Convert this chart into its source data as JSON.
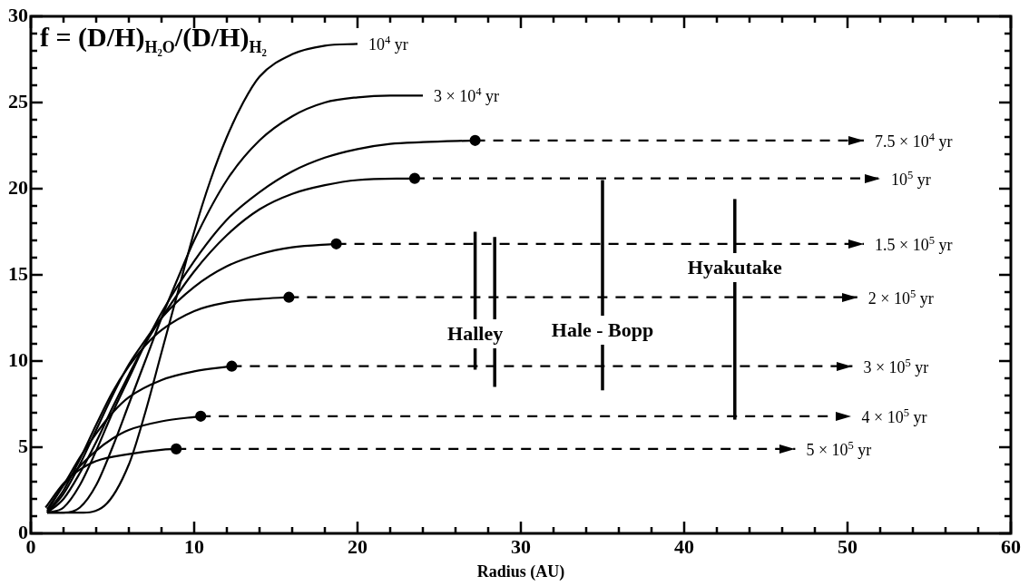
{
  "chart_data": {
    "type": "line",
    "title": "f = (D/H)$_{H₂O}$/(D/H)$_{H₂}$",
    "xlabel": "Radius (AU)",
    "xlim": [
      0,
      60
    ],
    "ylim": [
      0,
      30
    ],
    "xticks": [
      0,
      {
        "value": 2,
        "label": null
      },
      {
        "value": 4,
        "label": null
      },
      {
        "value": 6,
        "label": null
      },
      {
        "value": 8,
        "label": null
      },
      10,
      {
        "value": 12,
        "label": null
      },
      {
        "value": 14,
        "label": null
      },
      {
        "value": 16,
        "label": null
      },
      {
        "value": 18,
        "label": null
      },
      20,
      {
        "value": 22,
        "label": null
      },
      {
        "value": 24,
        "label": null
      },
      {
        "value": 26,
        "label": null
      },
      {
        "value": 28,
        "label": null
      },
      30,
      {
        "value": 32,
        "label": null
      },
      {
        "value": 34,
        "label": null
      },
      {
        "value": 36,
        "label": null
      },
      {
        "value": 38,
        "label": null
      },
      40,
      {
        "value": 42,
        "label": null
      },
      {
        "value": 44,
        "label": null
      },
      {
        "value": 46,
        "label": null
      },
      {
        "value": 48,
        "label": null
      },
      50,
      {
        "value": 52,
        "label": null
      },
      {
        "value": 54,
        "label": null
      },
      {
        "value": 56,
        "label": null
      },
      {
        "value": 58,
        "label": null
      },
      60
    ],
    "yticks": [
      0,
      {
        "value": 1,
        "label": null
      },
      {
        "value": 2,
        "label": null
      },
      {
        "value": 3,
        "label": null
      },
      {
        "value": 4,
        "label": null
      },
      5,
      {
        "value": 6,
        "label": null
      },
      {
        "value": 7,
        "label": null
      },
      {
        "value": 8,
        "label": null
      },
      {
        "value": 9,
        "label": null
      },
      10,
      {
        "value": 11,
        "label": null
      },
      {
        "value": 12,
        "label": null
      },
      {
        "value": 13,
        "label": null
      },
      {
        "value": 14,
        "label": null
      },
      15,
      {
        "value": 16,
        "label": null
      },
      {
        "value": 17,
        "label": null
      },
      {
        "value": 18,
        "label": null
      },
      {
        "value": 19,
        "label": null
      },
      20,
      {
        "value": 21,
        "label": null
      },
      {
        "value": 22,
        "label": null
      },
      {
        "value": 23,
        "label": null
      },
      {
        "value": 24,
        "label": null
      },
      25,
      {
        "value": 26,
        "label": null
      },
      {
        "value": 27,
        "label": null
      },
      {
        "value": 28,
        "label": null
      },
      {
        "value": 29,
        "label": null
      },
      30
    ],
    "grid": false,
    "legend": false,
    "marker": "none",
    "line_style": "solid",
    "series": [
      {
        "type": "line",
        "color": "#000000",
        "x": [
          1,
          3,
          4.5,
          6,
          7,
          8,
          9,
          10,
          11,
          12,
          13,
          14,
          16,
          18,
          20
        ],
        "values": [
          1.2,
          1.2,
          1.6,
          4,
          7,
          10.5,
          14,
          17.5,
          20.5,
          23,
          25,
          26.5,
          27.8,
          28.3,
          28.4
        ]
      },
      {
        "type": "line",
        "color": "#000000",
        "x": [
          1,
          2,
          3,
          4,
          5,
          6,
          7,
          8,
          9,
          10,
          12,
          14,
          16,
          18,
          20,
          22,
          24
        ],
        "values": [
          1.2,
          1.2,
          1.5,
          2.8,
          5,
          7.5,
          10,
          12.5,
          14.8,
          17,
          20.5,
          22.8,
          24.2,
          25,
          25.3,
          25.4,
          25.4
        ]
      },
      {
        "type": "line",
        "color": "#000000",
        "x": [
          1,
          2,
          3,
          4,
          5,
          6,
          7,
          8,
          10,
          12,
          14,
          16,
          18,
          20,
          22,
          24,
          27.2
        ],
        "values": [
          1.2,
          1.5,
          2.8,
          4.8,
          7,
          9,
          11,
          12.8,
          15.8,
          18.2,
          19.8,
          21,
          21.8,
          22.3,
          22.6,
          22.7,
          22.8
        ]
      },
      {
        "type": "line",
        "color": "#000000",
        "x": [
          1,
          2,
          3,
          4,
          5,
          6,
          7,
          8,
          10,
          12,
          14,
          16,
          18,
          20,
          23.5
        ],
        "values": [
          1.2,
          2,
          3.5,
          5.3,
          7.3,
          9.2,
          11,
          12.5,
          15.2,
          17.3,
          18.8,
          19.7,
          20.2,
          20.5,
          20.6
        ]
      },
      {
        "type": "line",
        "color": "#000000",
        "x": [
          1,
          2,
          3,
          4,
          5,
          6,
          7,
          8,
          10,
          12,
          14,
          16,
          18.7
        ],
        "values": [
          1.2,
          2.3,
          4,
          6,
          8,
          9.8,
          11.2,
          12.5,
          14.3,
          15.5,
          16.2,
          16.6,
          16.8
        ]
      },
      {
        "type": "line",
        "color": "#000000",
        "x": [
          1,
          2,
          3,
          4,
          5,
          6,
          7,
          8,
          10,
          12,
          14,
          15.8
        ],
        "values": [
          1.2,
          2.5,
          4.3,
          6.3,
          8.2,
          9.7,
          10.9,
          11.8,
          12.9,
          13.4,
          13.6,
          13.7
        ]
      },
      {
        "type": "line",
        "color": "#000000",
        "x": [
          1,
          2,
          3,
          4,
          5,
          6,
          8,
          10,
          12.3
        ],
        "values": [
          1.3,
          2.8,
          4.4,
          5.8,
          7,
          7.9,
          8.9,
          9.4,
          9.7
        ]
      },
      {
        "type": "line",
        "color": "#000000",
        "x": [
          1,
          2,
          3,
          4,
          5,
          6,
          8,
          10.4
        ],
        "values": [
          1.4,
          2.8,
          3.9,
          4.8,
          5.5,
          6,
          6.5,
          6.8
        ]
      },
      {
        "type": "line",
        "color": "#000000",
        "x": [
          0.9,
          2,
          3,
          4,
          6,
          8,
          8.9
        ],
        "values": [
          1.5,
          2.9,
          3.7,
          4.2,
          4.6,
          4.85,
          4.9
        ]
      },
      {
        "type": "line",
        "line_style": "dashed",
        "color": "#000000",
        "x": [
          27.2,
          51
        ],
        "values": [
          22.8,
          22.8
        ]
      },
      {
        "type": "line",
        "line_style": "dashed",
        "color": "#000000",
        "x": [
          23.5,
          52
        ],
        "values": [
          20.6,
          20.6
        ]
      },
      {
        "type": "line",
        "line_style": "dashed",
        "color": "#000000",
        "x": [
          18.7,
          51
        ],
        "values": [
          16.8,
          16.8
        ]
      },
      {
        "type": "line",
        "line_style": "dashed",
        "color": "#000000",
        "x": [
          15.8,
          50.6
        ],
        "values": [
          13.7,
          13.7
        ]
      },
      {
        "type": "line",
        "line_style": "dashed",
        "color": "#000000",
        "x": [
          12.3,
          50.3
        ],
        "values": [
          9.7,
          9.7
        ]
      },
      {
        "type": "line",
        "line_style": "dashed",
        "color": "#000000",
        "x": [
          10.4,
          50.2
        ],
        "values": [
          6.8,
          6.8
        ]
      },
      {
        "type": "line",
        "line_style": "dashed",
        "color": "#000000",
        "x": [
          8.9,
          46.8
        ],
        "values": [
          4.9,
          4.9
        ]
      },
      {
        "type": "scatter",
        "marker": "circle",
        "color": "#000000",
        "x": [
          27.2,
          23.5,
          18.7,
          15.8,
          12.3,
          10.4,
          8.9
        ],
        "values": [
          22.8,
          20.6,
          16.8,
          13.7,
          9.7,
          6.8,
          4.9
        ]
      },
      {
        "type": "line",
        "color": "#000000",
        "x": [
          27.2,
          27.2,
          27.8,
          28.4,
          28.4
        ],
        "values": [
          9.5,
          17.5,
          null,
          8.5,
          17.2
        ]
      },
      {
        "type": "line",
        "color": "#000000",
        "x": [
          35,
          35
        ],
        "values": [
          8.3,
          20.5
        ]
      },
      {
        "type": "line",
        "color": "#000000",
        "x": [
          43.1,
          43.1
        ],
        "values": [
          6.6,
          19.4
        ]
      }
    ],
    "annotations": [
      {
        "text": "10$^{4}$ yr",
        "x": 20,
        "y": 28.4
      },
      {
        "text": "3 × 10$^{4}$ yr",
        "x": 24,
        "y": 25.4
      },
      {
        "text": "7.5 × 10$^{4}$ yr",
        "x": 51,
        "y": 22.8
      },
      {
        "text": "10$^{5}$ yr",
        "x": 52,
        "y": 20.6
      },
      {
        "text": "1.5 × 10$^{5}$ yr",
        "x": 51,
        "y": 16.8
      },
      {
        "text": "2 × 10$^{5}$ yr",
        "x": 50.6,
        "y": 13.7
      },
      {
        "text": "3 × 10$^{5}$ yr",
        "x": 50.3,
        "y": 9.7
      },
      {
        "text": "4 × 10$^{5}$ yr",
        "x": 50.2,
        "y": 6.8
      },
      {
        "text": "5 × 10$^{5}$ yr",
        "x": 46.8,
        "y": 4.9
      },
      {
        "text": "Halley",
        "x": 27.2,
        "y": 11.6
      },
      {
        "text": "Hale - Bopp",
        "x": 35,
        "y": 11.8
      },
      {
        "text": "Hyakutake",
        "x": 43.1,
        "y": 15.4
      }
    ]
  }
}
